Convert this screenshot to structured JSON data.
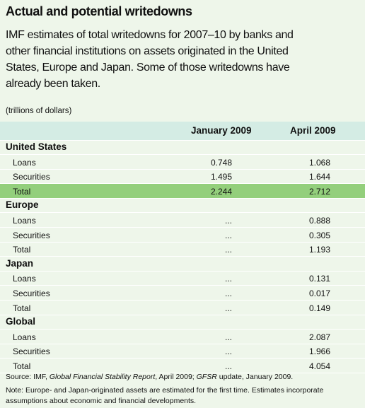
{
  "title": "Actual and potential writedowns",
  "subtitle": [
    "IMF estimates of total writedowns for 2007–10 by banks and",
    "other financial institutions on assets originated in the United",
    "States, Europe and Japan. Some of those writedowns have",
    "already been taken."
  ],
  "unit": "(trillions of dollars)",
  "table": {
    "columns": [
      "January 2009",
      "April 2009"
    ],
    "sections": [
      {
        "name": "United States",
        "rows": [
          [
            "Loans",
            "0.748",
            "1.068"
          ],
          [
            "Securities",
            "1.495",
            "1.644"
          ],
          [
            "Total",
            "2.244",
            "2.712"
          ]
        ]
      },
      {
        "name": "Europe",
        "rows": [
          [
            "Loans",
            "...",
            "0.888"
          ],
          [
            "Securities",
            "...",
            "0.305"
          ],
          [
            "Total",
            "...",
            "1.193"
          ]
        ]
      },
      {
        "name": "Japan",
        "rows": [
          [
            "Loans",
            "...",
            "0.131"
          ],
          [
            "Securities",
            "...",
            "0.017"
          ],
          [
            "Total",
            "...",
            "0.149"
          ]
        ]
      },
      {
        "name": "Global",
        "rows": [
          [
            "Loans",
            "...",
            "2.087"
          ],
          [
            "Securities",
            "...",
            "1.966"
          ],
          [
            "Total",
            "...",
            "4.054"
          ]
        ]
      }
    ]
  },
  "source": [
    "Source: IMF, ",
    "Global Financial Stability Report",
    ", April 2009; ",
    "GFSR",
    " update, January 2009."
  ],
  "note": [
    "Note: Europe- and Japan-originated assets are estimated for the first time. Estimates incorporate",
    "assumptions about economic and financial developments."
  ]
}
